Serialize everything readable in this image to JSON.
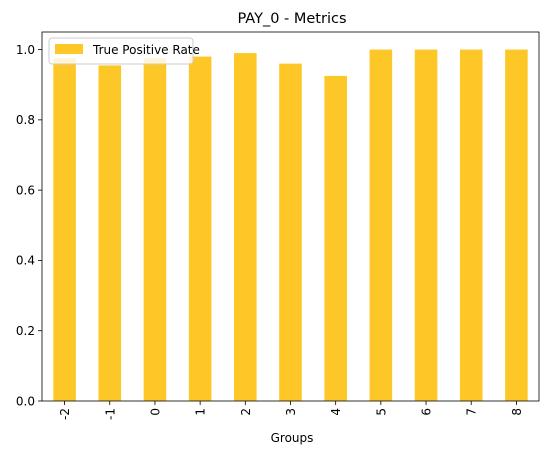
{
  "chart_data": {
    "type": "bar",
    "title": "PAY_0 - Metrics",
    "xlabel": "Groups",
    "ylabel": "",
    "categories": [
      "-2",
      "-1",
      "0",
      "1",
      "2",
      "3",
      "4",
      "5",
      "6",
      "7",
      "8"
    ],
    "series": [
      {
        "name": "True Positive Rate",
        "values": [
          0.975,
          0.955,
          0.975,
          0.98,
          0.99,
          0.96,
          0.925,
          1.0,
          1.0,
          1.0,
          1.0
        ],
        "color": "#fdc827"
      }
    ],
    "ylim": [
      0,
      1.05
    ],
    "yticks": [
      0.0,
      0.2,
      0.4,
      0.6,
      0.8,
      1.0
    ],
    "ytick_labels": [
      "0.0",
      "0.2",
      "0.4",
      "0.6",
      "0.8",
      "1.0"
    ],
    "grid": false,
    "legend_position": "top-left",
    "xtick_rotation": "vertical"
  }
}
